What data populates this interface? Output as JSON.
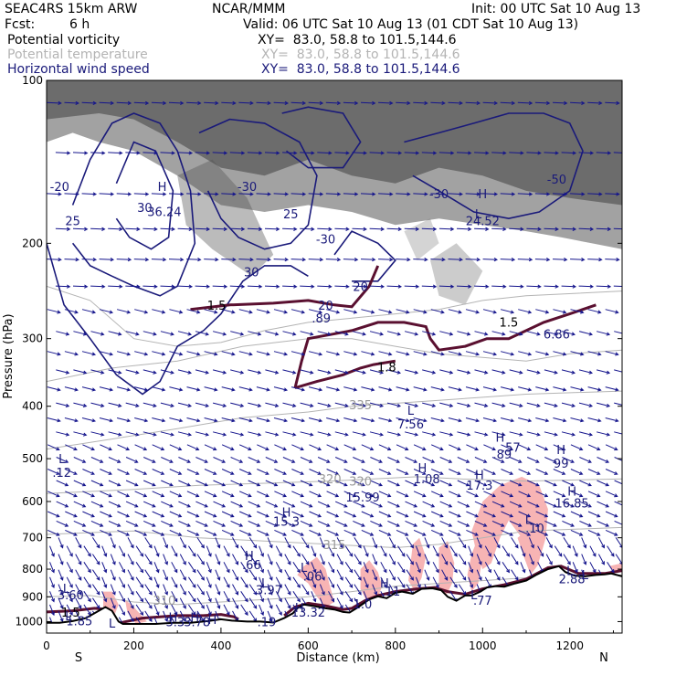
{
  "header": {
    "model": "SEAC4RS 15km ARW",
    "center": "NCAR/MMM",
    "init": "Init: 00 UTC Sat 10 Aug 13",
    "fcst_label": "Fcst:",
    "fcst_value": "6 h",
    "valid": "Valid: 06 UTC Sat 10 Aug 13 (01 CDT Sat 10 Aug 13)",
    "fields": [
      {
        "name": "Potential vorticity",
        "xy": "XY=  83.0, 58.8 to 101.5,144.6"
      },
      {
        "name": "Potential temperature",
        "xy": "XY=  83.0, 58.8 to 101.5,144.6"
      },
      {
        "name": "Horizontal wind speed",
        "xy": "XY=  83.0, 58.8 to 101.5,144.6"
      }
    ]
  },
  "colors": {
    "pv_contour": "#5a1030",
    "theta_contour": "#b4b4b4",
    "wind_contour": "#1a1a7a",
    "wind_vector": "#14148c",
    "label_navy": "#1a1a7a",
    "convective_shading": "#f7b4b4",
    "upper_shading": "#555555",
    "terrain": "#000000"
  },
  "chart_data": {
    "type": "cross-section",
    "title": "",
    "xlabel": "Distance (km)",
    "ylabel": "Pressure (hPa)",
    "xlim": [
      0,
      1320
    ],
    "ylim": [
      1050,
      100
    ],
    "y_scale": "log",
    "x_ticks": [
      0,
      200,
      400,
      600,
      800,
      1000,
      1200
    ],
    "y_ticks": [
      100,
      200,
      300,
      400,
      500,
      600,
      700,
      800,
      900,
      1000
    ],
    "x_end_labels": {
      "left": "S",
      "right": "N"
    },
    "terrain_surface": [
      [
        0,
        1005
      ],
      [
        30,
        1005
      ],
      [
        60,
        998
      ],
      [
        90,
        985
      ],
      [
        110,
        965
      ],
      [
        135,
        940
      ],
      [
        150,
        955
      ],
      [
        165,
        1000
      ],
      [
        175,
        1010
      ],
      [
        215,
        1010
      ],
      [
        250,
        1010
      ],
      [
        290,
        1005
      ],
      [
        330,
        1005
      ],
      [
        370,
        998
      ],
      [
        400,
        990
      ],
      [
        425,
        996
      ],
      [
        460,
        1000
      ],
      [
        490,
        1000
      ],
      [
        520,
        1004
      ],
      [
        545,
        985
      ],
      [
        565,
        965
      ],
      [
        575,
        945
      ],
      [
        590,
        930
      ],
      [
        610,
        935
      ],
      [
        640,
        945
      ],
      [
        660,
        950
      ],
      [
        680,
        960
      ],
      [
        695,
        962
      ],
      [
        715,
        940
      ],
      [
        740,
        910
      ],
      [
        760,
        898
      ],
      [
        780,
        905
      ],
      [
        800,
        885
      ],
      [
        815,
        880
      ],
      [
        840,
        888
      ],
      [
        860,
        870
      ],
      [
        885,
        868
      ],
      [
        905,
        875
      ],
      [
        920,
        900
      ],
      [
        940,
        915
      ],
      [
        960,
        895
      ],
      [
        975,
        895
      ],
      [
        995,
        880
      ],
      [
        1010,
        865
      ],
      [
        1030,
        860
      ],
      [
        1050,
        862
      ],
      [
        1075,
        850
      ],
      [
        1100,
        840
      ],
      [
        1125,
        818
      ],
      [
        1150,
        800
      ],
      [
        1175,
        790
      ],
      [
        1190,
        810
      ],
      [
        1210,
        822
      ],
      [
        1235,
        825
      ],
      [
        1260,
        820
      ],
      [
        1280,
        818
      ],
      [
        1295,
        815
      ],
      [
        1320,
        825
      ]
    ],
    "pv_contour_levels": [
      1.5
    ],
    "theta_contour_levels": [
      305,
      310,
      315,
      320,
      335
    ],
    "wind_speed_contour_levels": [
      15,
      20,
      25,
      30
    ],
    "labels": [
      {
        "text": "-20",
        "x": 30,
        "p": 160,
        "field": "wind"
      },
      {
        "text": "25",
        "x": 60,
        "p": 185,
        "field": "wind"
      },
      {
        "text": "30",
        "x": 225,
        "p": 175,
        "field": "wind"
      },
      {
        "text": "H",
        "x": 265,
        "p": 160,
        "field": "wind"
      },
      {
        "text": "36.24",
        "x": 270,
        "p": 178,
        "field": "wind"
      },
      {
        "text": "-30",
        "x": 460,
        "p": 160,
        "field": "wind"
      },
      {
        "text": "25",
        "x": 560,
        "p": 180,
        "field": "wind"
      },
      {
        "text": "30",
        "x": 470,
        "p": 230,
        "field": "wind"
      },
      {
        "text": "-30",
        "x": 640,
        "p": 200,
        "field": "wind"
      },
      {
        "text": "20",
        "x": 720,
        "p": 245,
        "field": "wind"
      },
      {
        "text": "1.5",
        "x": 390,
        "p": 265,
        "field": "pv"
      },
      {
        "text": "H",
        "x": 1000,
        "p": 165,
        "field": "wind"
      },
      {
        "text": "24.52",
        "x": 1000,
        "p": 185,
        "field": "wind"
      },
      {
        "text": "-30",
        "x": 900,
        "p": 165,
        "field": "wind"
      },
      {
        "text": "L",
        "x": 990,
        "p": 180,
        "field": "wind"
      },
      {
        "text": "-50",
        "x": 1170,
        "p": 155,
        "field": "wind"
      },
      {
        "text": "20",
        "x": 640,
        "p": 265,
        "field": "wind"
      },
      {
        "text": ".89",
        "x": 630,
        "p": 280,
        "field": "wind"
      },
      {
        "text": "1.5",
        "x": 1060,
        "p": 285,
        "field": "pv"
      },
      {
        "text": "6.86",
        "x": 1170,
        "p": 300,
        "field": "wind"
      },
      {
        "text": "1.8",
        "x": 780,
        "p": 345,
        "field": "pv"
      },
      {
        "text": "L",
        "x": 835,
        "p": 415,
        "field": "wind"
      },
      {
        "text": "7.56",
        "x": 835,
        "p": 440,
        "field": "wind"
      },
      {
        "text": "H",
        "x": 1040,
        "p": 465,
        "field": "wind"
      },
      {
        "text": ".57",
        "x": 1065,
        "p": 485,
        "field": "wind"
      },
      {
        "text": ".89",
        "x": 1045,
        "p": 500,
        "field": "wind"
      },
      {
        "text": "H",
        "x": 1180,
        "p": 490,
        "field": "wind"
      },
      {
        "text": "99",
        "x": 1180,
        "p": 520,
        "field": "wind"
      },
      {
        "text": "L",
        "x": 35,
        "p": 510,
        "field": "wind"
      },
      {
        "text": ".12",
        "x": 35,
        "p": 540,
        "field": "wind"
      },
      {
        "text": "H",
        "x": 862,
        "p": 530,
        "field": "wind"
      },
      {
        "text": "1.08",
        "x": 872,
        "p": 555,
        "field": "wind"
      },
      {
        "text": "H",
        "x": 993,
        "p": 545,
        "field": "wind"
      },
      {
        "text": "17.3",
        "x": 993,
        "p": 570,
        "field": "wind"
      },
      {
        "text": "320",
        "x": 650,
        "p": 555,
        "field": "theta"
      },
      {
        "text": "320",
        "x": 720,
        "p": 560,
        "field": "theta"
      },
      {
        "text": "15.99",
        "x": 725,
        "p": 600,
        "field": "wind"
      },
      {
        "text": "H",
        "x": 1205,
        "p": 585,
        "field": "wind"
      },
      {
        "text": "16.85",
        "x": 1205,
        "p": 615,
        "field": "wind"
      },
      {
        "text": "H",
        "x": 550,
        "p": 640,
        "field": "wind"
      },
      {
        "text": "15.3",
        "x": 550,
        "p": 665,
        "field": "wind"
      },
      {
        "text": "L",
        "x": 1105,
        "p": 660,
        "field": "wind"
      },
      {
        "text": ".10",
        "x": 1120,
        "p": 685,
        "field": "wind"
      },
      {
        "text": "315",
        "x": 660,
        "p": 735,
        "field": "theta"
      },
      {
        "text": "335",
        "x": 720,
        "p": 405,
        "field": "theta"
      },
      {
        "text": "H",
        "x": 465,
        "p": 770,
        "field": "wind"
      },
      {
        "text": ".66",
        "x": 470,
        "p": 800,
        "field": "wind"
      },
      {
        "text": "L",
        "x": 590,
        "p": 810,
        "field": "wind"
      },
      {
        "text": ".06",
        "x": 610,
        "p": 840,
        "field": "wind"
      },
      {
        "text": "L",
        "x": 1200,
        "p": 820,
        "field": "wind"
      },
      {
        "text": "L",
        "x": 1235,
        "p": 835,
        "field": "wind"
      },
      {
        "text": "2.88",
        "x": 1205,
        "p": 850,
        "field": "wind"
      },
      {
        "text": "H",
        "x": 775,
        "p": 865,
        "field": "wind"
      },
      {
        "text": ".11",
        "x": 790,
        "p": 895,
        "field": "wind"
      },
      {
        "text": "L",
        "x": 500,
        "p": 865,
        "field": "wind"
      },
      {
        "text": "3.97",
        "x": 510,
        "p": 890,
        "field": "wind"
      },
      {
        "text": "L",
        "x": 45,
        "p": 885,
        "field": "wind"
      },
      {
        "text": "3.60",
        "x": 55,
        "p": 910,
        "field": "wind"
      },
      {
        "text": "310",
        "x": 270,
        "p": 930,
        "field": "theta"
      },
      {
        "text": "H",
        "x": 580,
        "p": 960,
        "field": "wind"
      },
      {
        "text": "13.32",
        "x": 600,
        "p": 980,
        "field": "wind"
      },
      {
        "text": "1.0",
        "x": 725,
        "p": 945,
        "field": "wind"
      },
      {
        "text": "L",
        "x": 980,
        "p": 910,
        "field": "wind"
      },
      {
        "text": ".77",
        "x": 1000,
        "p": 930,
        "field": "wind"
      },
      {
        "text": "1.5",
        "x": 55,
        "p": 980,
        "field": "pv"
      },
      {
        "text": "L",
        "x": 50,
        "p": 995,
        "field": "wind"
      },
      {
        "text": "1.85",
        "x": 75,
        "p": 1015,
        "field": "wind"
      },
      {
        "text": "H",
        "x": 290,
        "p": 1000,
        "field": "wind"
      },
      {
        "text": "3.3",
        "x": 295,
        "p": 1020,
        "field": "wind"
      },
      {
        "text": "H",
        "x": 340,
        "p": 1000,
        "field": "wind"
      },
      {
        "text": "3.78",
        "x": 345,
        "p": 1020,
        "field": "wind"
      },
      {
        "text": "H",
        "x": 380,
        "p": 1010,
        "field": "wind"
      },
      {
        "text": ".19",
        "x": 505,
        "p": 1020,
        "field": "wind"
      },
      {
        "text": "L",
        "x": 150,
        "p": 1025,
        "field": "wind"
      }
    ],
    "grid": false,
    "legend": "header"
  }
}
